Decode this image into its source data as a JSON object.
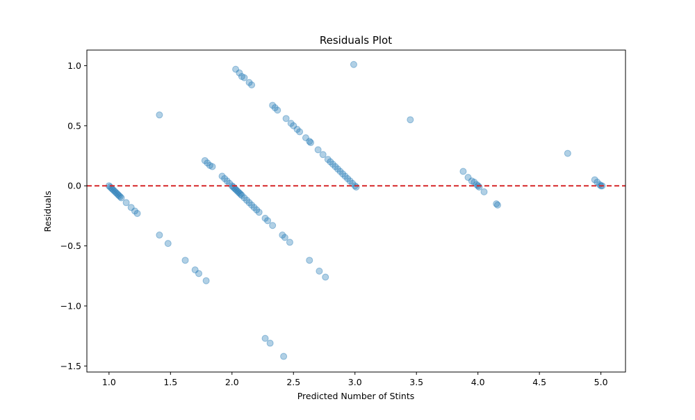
{
  "chart_data": {
    "type": "scatter",
    "title": "Residuals Plot",
    "xlabel": "Predicted Number of Stints",
    "ylabel": "Residuals",
    "xlim": [
      0.82,
      5.2
    ],
    "ylim": [
      -1.55,
      1.13
    ],
    "xticks": [
      1.0,
      1.5,
      2.0,
      2.5,
      3.0,
      3.5,
      4.0,
      4.5,
      5.0
    ],
    "xtick_labels": [
      "1.0",
      "1.5",
      "2.0",
      "2.5",
      "3.0",
      "3.5",
      "4.0",
      "4.5",
      "5.0"
    ],
    "yticks": [
      -1.5,
      -1.0,
      -0.5,
      0.0,
      0.5,
      1.0
    ],
    "ytick_labels": [
      "−1.5",
      "−1.0",
      "−0.5",
      "0.0",
      "0.5",
      "1.0"
    ],
    "grid": false,
    "reference_line": {
      "y": 0.0,
      "color": "#d62728",
      "style": "dashed"
    },
    "point_color": "#1f77b4",
    "point_alpha": 0.35,
    "series": [
      {
        "points": [
          [
            1.0,
            0.0
          ],
          [
            1.01,
            -0.01
          ],
          [
            1.02,
            -0.02
          ],
          [
            1.03,
            -0.03
          ],
          [
            1.04,
            -0.04
          ],
          [
            1.05,
            -0.05
          ],
          [
            1.06,
            -0.06
          ],
          [
            1.07,
            -0.07
          ],
          [
            1.08,
            -0.08
          ],
          [
            1.09,
            -0.09
          ],
          [
            1.1,
            -0.1
          ],
          [
            1.14,
            -0.14
          ],
          [
            1.18,
            -0.18
          ],
          [
            1.21,
            -0.21
          ],
          [
            1.23,
            -0.23
          ],
          [
            1.41,
            0.59
          ],
          [
            1.41,
            -0.41
          ],
          [
            1.48,
            -0.48
          ],
          [
            1.62,
            -0.62
          ],
          [
            1.7,
            -0.7
          ],
          [
            1.73,
            -0.73
          ],
          [
            1.79,
            -0.79
          ],
          [
            1.78,
            0.21
          ],
          [
            1.8,
            0.19
          ],
          [
            1.82,
            0.17
          ],
          [
            1.84,
            0.16
          ],
          [
            1.92,
            0.08
          ],
          [
            1.94,
            0.06
          ],
          [
            1.96,
            0.04
          ],
          [
            1.98,
            0.02
          ],
          [
            2.0,
            0.0
          ],
          [
            2.01,
            -0.01
          ],
          [
            2.02,
            -0.02
          ],
          [
            2.03,
            -0.03
          ],
          [
            2.04,
            -0.04
          ],
          [
            2.05,
            -0.05
          ],
          [
            2.06,
            -0.06
          ],
          [
            2.07,
            -0.07
          ],
          [
            2.08,
            -0.08
          ],
          [
            2.1,
            -0.1
          ],
          [
            2.12,
            -0.12
          ],
          [
            2.14,
            -0.14
          ],
          [
            2.16,
            -0.16
          ],
          [
            2.18,
            -0.18
          ],
          [
            2.2,
            -0.2
          ],
          [
            2.22,
            -0.22
          ],
          [
            2.27,
            -0.27
          ],
          [
            2.29,
            -0.29
          ],
          [
            2.33,
            -0.33
          ],
          [
            2.41,
            -0.41
          ],
          [
            2.43,
            -0.43
          ],
          [
            2.47,
            -0.47
          ],
          [
            2.63,
            -0.62
          ],
          [
            2.71,
            -0.71
          ],
          [
            2.76,
            -0.76
          ],
          [
            2.27,
            -1.27
          ],
          [
            2.31,
            -1.31
          ],
          [
            2.42,
            -1.42
          ],
          [
            2.03,
            0.97
          ],
          [
            2.06,
            0.94
          ],
          [
            2.08,
            0.91
          ],
          [
            2.1,
            0.9
          ],
          [
            2.14,
            0.86
          ],
          [
            2.16,
            0.84
          ],
          [
            2.33,
            0.67
          ],
          [
            2.35,
            0.65
          ],
          [
            2.37,
            0.63
          ],
          [
            2.44,
            0.56
          ],
          [
            2.48,
            0.52
          ],
          [
            2.5,
            0.5
          ],
          [
            2.53,
            0.47
          ],
          [
            2.55,
            0.45
          ],
          [
            2.6,
            0.4
          ],
          [
            2.63,
            0.37
          ],
          [
            2.64,
            0.36
          ],
          [
            2.7,
            0.3
          ],
          [
            2.74,
            0.26
          ],
          [
            2.78,
            0.22
          ],
          [
            2.8,
            0.2
          ],
          [
            2.82,
            0.18
          ],
          [
            2.84,
            0.16
          ],
          [
            2.86,
            0.14
          ],
          [
            2.88,
            0.12
          ],
          [
            2.9,
            0.1
          ],
          [
            2.92,
            0.08
          ],
          [
            2.94,
            0.06
          ],
          [
            2.96,
            0.04
          ],
          [
            2.98,
            0.02
          ],
          [
            3.0,
            0.0
          ],
          [
            3.01,
            -0.01
          ],
          [
            2.99,
            1.01
          ],
          [
            3.45,
            0.55
          ],
          [
            3.88,
            0.12
          ],
          [
            3.92,
            0.07
          ],
          [
            3.95,
            0.04
          ],
          [
            3.97,
            0.03
          ],
          [
            3.99,
            0.01
          ],
          [
            4.0,
            0.0
          ],
          [
            4.01,
            -0.01
          ],
          [
            4.05,
            -0.05
          ],
          [
            4.15,
            -0.15
          ],
          [
            4.16,
            -0.16
          ],
          [
            4.73,
            0.27
          ],
          [
            4.95,
            0.05
          ],
          [
            4.97,
            0.03
          ],
          [
            4.99,
            0.01
          ],
          [
            5.0,
            0.0
          ],
          [
            5.01,
            0.0
          ]
        ]
      }
    ]
  }
}
